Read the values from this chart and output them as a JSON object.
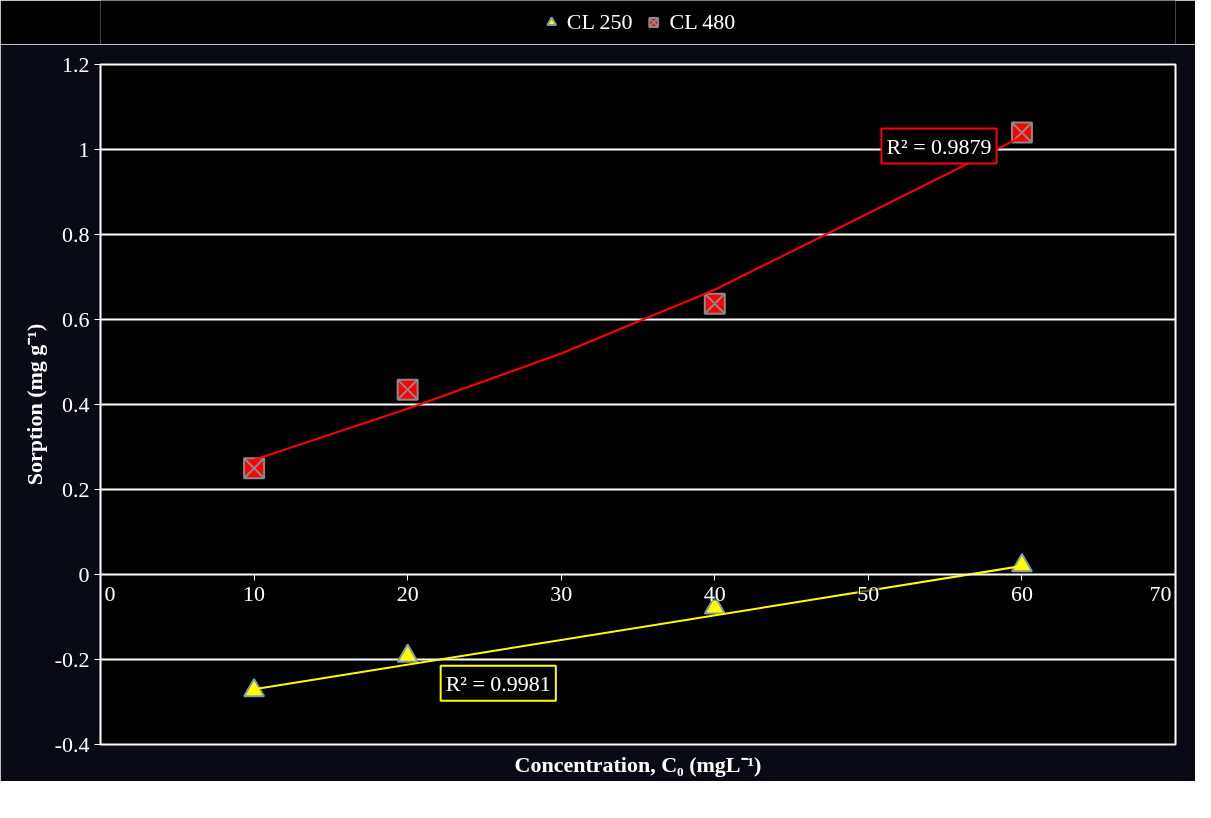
{
  "chart_data": {
    "type": "scatter",
    "xlabel": "Concentration, C₀ (mgL⁻¹)",
    "ylabel": "Sorption (mg g⁻¹)",
    "xlim": [
      0,
      70
    ],
    "xticks": [
      0,
      10,
      20,
      30,
      40,
      50,
      60,
      70
    ],
    "ylim": [
      -0.4,
      1.2
    ],
    "yticks": [
      -0.4,
      -0.2,
      0,
      0.2,
      0.4,
      0.6,
      0.8,
      1,
      1.2
    ],
    "grid": "y",
    "legend": "top",
    "series": [
      {
        "name": "CL 250",
        "marker": "triangle",
        "color": "#ffff00",
        "x": [
          10,
          20,
          40,
          60
        ],
        "values": [
          -0.273,
          -0.192,
          -0.078,
          0.021
        ]
      },
      {
        "name": "CL 480",
        "marker": "cross",
        "color": "#ff0000",
        "x": [
          10,
          20,
          40,
          60
        ],
        "values": [
          0.25,
          0.435,
          0.637,
          1.04
        ]
      },
      {
        "type": "line",
        "color": "#ffff00",
        "x": [
          10,
          60
        ],
        "values": [
          -0.27,
          0.02
        ]
      },
      {
        "type": "line",
        "color": "#ff0000",
        "x": [
          10,
          20,
          30,
          40,
          50,
          60
        ],
        "values": [
          0.27,
          0.39,
          0.52,
          0.67,
          0.85,
          1.03
        ]
      }
    ],
    "annotations": [
      "R² = 0.9981",
      "R² = 0.9879"
    ]
  }
}
